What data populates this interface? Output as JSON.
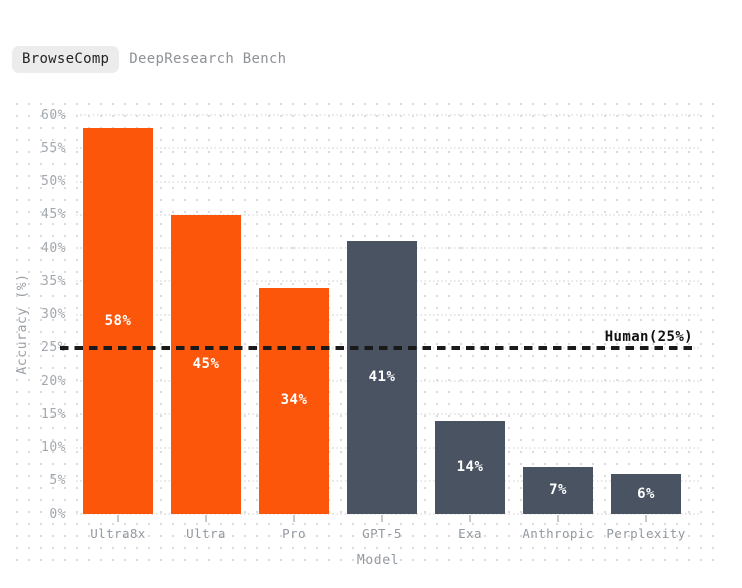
{
  "tabs": {
    "items": [
      {
        "label": "BrowseComp",
        "active": true
      },
      {
        "label": "DeepResearch Bench",
        "active": false
      }
    ]
  },
  "colors": {
    "orange": "#FB560A",
    "slate": "#4A5362",
    "tab_active_bg": "#ECECEC",
    "tab_active_text": "#242424",
    "tab_inactive_text": "#8E9196",
    "axis_text": "#A3A8AE",
    "category_text": "#9299A0",
    "reference_line": "#1A1A1A",
    "bar_label_text": "#FFFFFF",
    "dot_grid": "#DBDBDB"
  },
  "chart_data": {
    "type": "bar",
    "title": "",
    "xlabel": "Model",
    "ylabel": "Accuracy (%)",
    "categories": [
      "Ultra8x",
      "Ultra",
      "Pro",
      "GPT-5",
      "Exa",
      "Anthropic",
      "Perplexity"
    ],
    "values": [
      58,
      45,
      34,
      41,
      14,
      7,
      6
    ],
    "bar_labels": [
      "58%",
      "45%",
      "34%",
      "41%",
      "14%",
      "7%",
      "6%"
    ],
    "bar_colors": [
      "#FB560A",
      "#FB560A",
      "#FB560A",
      "#4A5362",
      "#4A5362",
      "#4A5362",
      "#4A5362"
    ],
    "ylim": [
      0,
      62
    ],
    "yticks": [
      0,
      5,
      10,
      15,
      20,
      25,
      30,
      35,
      40,
      45,
      50,
      55,
      60
    ],
    "ytick_labels": [
      "0%",
      "5%",
      "10%",
      "15%",
      "20%",
      "25%",
      "30%",
      "35%",
      "40%",
      "45%",
      "50%",
      "55%",
      "60%"
    ],
    "grid": "dotted-horizontal",
    "legend": "none",
    "reference_line": {
      "value": 25,
      "label": "Human(25%)"
    }
  }
}
